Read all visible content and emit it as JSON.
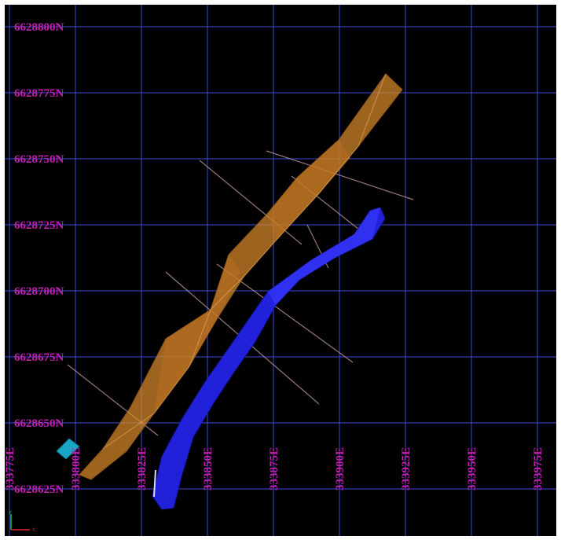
{
  "grid": {
    "northings": [
      "6628800N",
      "6628775N",
      "6628750N",
      "6628725N",
      "6628700N",
      "6628675N",
      "6628650N",
      "6628625N"
    ],
    "eastings": [
      "333775E",
      "333800E",
      "333825E",
      "333850E",
      "333875E",
      "333900E",
      "333925E",
      "333950E",
      "333975E"
    ]
  },
  "colors": {
    "background": "#000000",
    "grid": "#3a4ad8",
    "label": "#c21fb0",
    "orange_solid": "#d98a2b",
    "blue_solid": "#2323e6",
    "drillhole": "#c9a0a0",
    "marker": "#1aa6c4"
  },
  "triad": {
    "y_label": "Y",
    "x_label": "X"
  }
}
